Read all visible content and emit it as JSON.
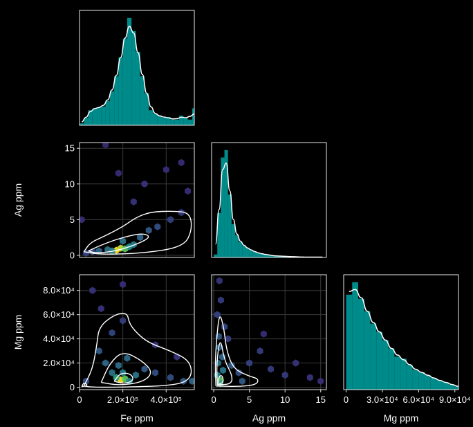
{
  "colors": {
    "background": "#000000",
    "axes": "#e8e8e8",
    "grid": "#3a3a3a",
    "hist_fill": "#008b8b",
    "kde_line": "#ffffff",
    "contour": "#ffffff",
    "density_low": "#3b0f70",
    "density_mid": "#21918c",
    "density_high": "#fde725"
  },
  "chart_data": {
    "type": "corner",
    "variables": [
      {
        "label": "Fe ppm",
        "range": [
          0,
          530000
        ],
        "ticks": [
          0,
          200000,
          400000
        ],
        "tick_labels": [
          "0",
          "2.0×10⁵",
          "4.0×10⁵"
        ]
      },
      {
        "label": "Ag ppm",
        "range": [
          -0.3,
          15.8
        ],
        "ticks": [
          0,
          5,
          10,
          15
        ],
        "tick_labels": [
          "0",
          "5",
          "10",
          "15"
        ]
      },
      {
        "label": "Mg ppm",
        "range": [
          -2000,
          93000
        ],
        "ticks": [
          0,
          20000,
          40000,
          60000,
          80000
        ],
        "tick_labels": [
          "0",
          "2.0×10⁴",
          "4.0×10⁴",
          "6.0×10⁴",
          "8.0×10⁴"
        ],
        "x_tick_labels": [
          "0",
          "3.0×10⁴",
          "6.0×10⁴",
          "9.0×10⁴"
        ],
        "x_ticks": [
          0,
          30000,
          60000,
          90000
        ]
      }
    ],
    "histograms": [
      {
        "variable": "Fe ppm",
        "bin_start": 0,
        "bin_width": 20000,
        "counts": [
          5,
          20,
          40,
          45,
          47,
          50,
          65,
          90,
          130,
          180,
          230,
          285,
          250,
          195,
          130,
          85,
          40,
          30,
          25,
          20,
          22,
          15,
          15,
          25,
          20,
          15,
          45,
          15
        ]
      },
      {
        "variable": "Ag ppm",
        "bin_start": 0,
        "bin_width": 0.5,
        "counts": [
          8,
          120,
          270,
          290,
          170,
          90,
          60,
          42,
          32,
          25,
          20,
          16,
          12,
          10,
          8,
          7,
          5,
          4,
          4,
          3,
          3,
          2,
          2,
          2,
          1,
          1,
          1,
          1,
          1,
          1,
          1
        ]
      },
      {
        "variable": "Mg ppm",
        "bin_start": 0,
        "bin_width": 5000,
        "counts": [
          230,
          260,
          220,
          190,
          160,
          140,
          120,
          100,
          80,
          75,
          60,
          48,
          42,
          35,
          28,
          22,
          18,
          12,
          8,
          5,
          3,
          2
        ]
      }
    ],
    "pairs": [
      {
        "x": "Fe ppm",
        "y": "Ag ppm",
        "density_cells": [
          {
            "x": 170000,
            "y": 0.7,
            "w": 1.0
          },
          {
            "x": 190000,
            "y": 1.0,
            "w": 0.95
          },
          {
            "x": 210000,
            "y": 0.9,
            "w": 0.85
          },
          {
            "x": 150000,
            "y": 0.6,
            "w": 0.6
          },
          {
            "x": 230000,
            "y": 1.2,
            "w": 0.65
          },
          {
            "x": 130000,
            "y": 0.8,
            "w": 0.45
          },
          {
            "x": 250000,
            "y": 1.5,
            "w": 0.5
          },
          {
            "x": 200000,
            "y": 2.0,
            "w": 0.45
          },
          {
            "x": 90000,
            "y": 0.6,
            "w": 0.35
          },
          {
            "x": 280000,
            "y": 2.5,
            "w": 0.35
          },
          {
            "x": 320000,
            "y": 3.5,
            "w": 0.3
          },
          {
            "x": 360000,
            "y": 4.0,
            "w": 0.25
          },
          {
            "x": 60000,
            "y": 0.5,
            "w": 0.25
          },
          {
            "x": 30000,
            "y": 0.3,
            "w": 0.2
          },
          {
            "x": 420000,
            "y": 5.0,
            "w": 0.2
          },
          {
            "x": 470000,
            "y": 6.0,
            "w": 0.18
          },
          {
            "x": 250000,
            "y": 7.5,
            "w": 0.15
          },
          {
            "x": 300000,
            "y": 10.0,
            "w": 0.15
          },
          {
            "x": 180000,
            "y": 11.5,
            "w": 0.12
          },
          {
            "x": 400000,
            "y": 12.0,
            "w": 0.12
          },
          {
            "x": 470000,
            "y": 13.0,
            "w": 0.12
          },
          {
            "x": 120000,
            "y": 15.5,
            "w": 0.12
          },
          {
            "x": 500000,
            "y": 9.0,
            "w": 0.12
          },
          {
            "x": 10000,
            "y": 5.0,
            "w": 0.12
          }
        ],
        "contours": [
          [
            [
              20000,
              0.5
            ],
            [
              50000,
              1.8
            ],
            [
              110000,
              2.6
            ],
            [
              200000,
              4.0
            ],
            [
              260000,
              5.3
            ],
            [
              330000,
              6.1
            ],
            [
              430000,
              6.2
            ],
            [
              510000,
              6.0
            ],
            [
              520000,
              3.5
            ],
            [
              480000,
              1.2
            ],
            [
              300000,
              0.3
            ],
            [
              100000,
              0.1
            ],
            [
              20000,
              0.5
            ]
          ],
          [
            [
              40000,
              0.6
            ],
            [
              120000,
              1.7
            ],
            [
              210000,
              2.6
            ],
            [
              290000,
              3.1
            ],
            [
              330000,
              2.6
            ],
            [
              270000,
              1.6
            ],
            [
              170000,
              0.6
            ],
            [
              80000,
              0.3
            ],
            [
              40000,
              0.6
            ]
          ]
        ]
      },
      {
        "x": "Fe ppm",
        "y": "Mg ppm",
        "density_cells": [
          {
            "x": 190000,
            "y": 6000,
            "w": 1.0
          },
          {
            "x": 210000,
            "y": 7000,
            "w": 0.85
          },
          {
            "x": 170000,
            "y": 8000,
            "w": 0.7
          },
          {
            "x": 230000,
            "y": 5000,
            "w": 0.6
          },
          {
            "x": 200000,
            "y": 12000,
            "w": 0.55
          },
          {
            "x": 150000,
            "y": 12000,
            "w": 0.45
          },
          {
            "x": 260000,
            "y": 10000,
            "w": 0.45
          },
          {
            "x": 180000,
            "y": 18000,
            "w": 0.4
          },
          {
            "x": 220000,
            "y": 24000,
            "w": 0.4
          },
          {
            "x": 120000,
            "y": 20000,
            "w": 0.35
          },
          {
            "x": 300000,
            "y": 15000,
            "w": 0.3
          },
          {
            "x": 90000,
            "y": 30000,
            "w": 0.3
          },
          {
            "x": 350000,
            "y": 12000,
            "w": 0.25
          },
          {
            "x": 420000,
            "y": 8000,
            "w": 0.25
          },
          {
            "x": 480000,
            "y": 5000,
            "w": 0.3
          },
          {
            "x": 30000,
            "y": 5000,
            "w": 0.25
          },
          {
            "x": 150000,
            "y": 45000,
            "w": 0.22
          },
          {
            "x": 200000,
            "y": 55000,
            "w": 0.18
          },
          {
            "x": 100000,
            "y": 65000,
            "w": 0.15
          },
          {
            "x": 60000,
            "y": 80000,
            "w": 0.15
          },
          {
            "x": 200000,
            "y": 85000,
            "w": 0.12
          },
          {
            "x": 350000,
            "y": 35000,
            "w": 0.15
          },
          {
            "x": 450000,
            "y": 25000,
            "w": 0.15
          },
          {
            "x": 520000,
            "y": 5000,
            "w": 0.35
          }
        ],
        "contours": [
          [
            [
              20000,
              1000
            ],
            [
              60000,
              15000
            ],
            [
              80000,
              35000
            ],
            [
              90000,
              50000
            ],
            [
              160000,
              60000
            ],
            [
              220000,
              62000
            ],
            [
              230000,
              52000
            ],
            [
              280000,
              42000
            ],
            [
              330000,
              36000
            ],
            [
              420000,
              30000
            ],
            [
              510000,
              22000
            ],
            [
              520000,
              8000
            ],
            [
              450000,
              1500
            ],
            [
              200000,
              0
            ],
            [
              60000,
              0
            ],
            [
              20000,
              1000
            ]
          ],
          [
            [
              100000,
              4000
            ],
            [
              140000,
              20000
            ],
            [
              200000,
              30000
            ],
            [
              290000,
              22000
            ],
            [
              340000,
              12000
            ],
            [
              290000,
              4000
            ],
            [
              180000,
              1500
            ],
            [
              100000,
              4000
            ]
          ],
          [
            [
              160000,
              5000
            ],
            [
              190000,
              12000
            ],
            [
              240000,
              11000
            ],
            [
              250000,
              5000
            ],
            [
              200000,
              3000
            ],
            [
              160000,
              5000
            ]
          ],
          [
            [
              10000,
              500
            ],
            [
              20000,
              4000
            ],
            [
              40000,
              1500
            ],
            [
              10000,
              500
            ]
          ]
        ]
      },
      {
        "x": "Ag ppm",
        "y": "Mg ppm",
        "density_cells": [
          {
            "x": 0.9,
            "y": 6000,
            "w": 0.85
          },
          {
            "x": 0.9,
            "y": 3000,
            "w": 0.7
          },
          {
            "x": 0.5,
            "y": 10000,
            "w": 0.55
          },
          {
            "x": 1.3,
            "y": 14000,
            "w": 0.45
          },
          {
            "x": 0.6,
            "y": 20000,
            "w": 0.45
          },
          {
            "x": 1.2,
            "y": 25000,
            "w": 0.35
          },
          {
            "x": 0.8,
            "y": 33000,
            "w": 0.35
          },
          {
            "x": 0.7,
            "y": 42000,
            "w": 0.3
          },
          {
            "x": 1.5,
            "y": 50000,
            "w": 0.22
          },
          {
            "x": 0.5,
            "y": 60000,
            "w": 0.2
          },
          {
            "x": 1.0,
            "y": 72000,
            "w": 0.18
          },
          {
            "x": 0.8,
            "y": 88000,
            "w": 0.15
          },
          {
            "x": 2.5,
            "y": 18000,
            "w": 0.3
          },
          {
            "x": 3.5,
            "y": 12000,
            "w": 0.25
          },
          {
            "x": 5.0,
            "y": 20000,
            "w": 0.2
          },
          {
            "x": 6.5,
            "y": 30000,
            "w": 0.18
          },
          {
            "x": 8.0,
            "y": 15000,
            "w": 0.18
          },
          {
            "x": 10.0,
            "y": 10000,
            "w": 0.18
          },
          {
            "x": 11.5,
            "y": 20000,
            "w": 0.15
          },
          {
            "x": 13.5,
            "y": 8000,
            "w": 0.15
          },
          {
            "x": 15.0,
            "y": 5000,
            "w": 0.12
          },
          {
            "x": 7.0,
            "y": 44000,
            "w": 0.12
          },
          {
            "x": 4.0,
            "y": 5000,
            "w": 0.3
          },
          {
            "x": 2.0,
            "y": 40000,
            "w": 0.18
          }
        ],
        "contours": [
          [
            [
              0.3,
              1000
            ],
            [
              0.2,
              20000
            ],
            [
              0.4,
              40000
            ],
            [
              0.8,
              62000
            ],
            [
              1.4,
              50000
            ],
            [
              1.8,
              30000
            ],
            [
              2.8,
              15000
            ],
            [
              5.0,
              9000
            ],
            [
              6.3,
              7000
            ],
            [
              6.0,
              2000
            ],
            [
              3.5,
              500
            ],
            [
              0.3,
              1000
            ]
          ],
          [
            [
              0.5,
              2000
            ],
            [
              0.4,
              20000
            ],
            [
              0.9,
              42000
            ],
            [
              1.5,
              22000
            ],
            [
              2.6,
              10000
            ],
            [
              2.5,
              2500
            ],
            [
              0.5,
              2000
            ]
          ],
          [
            [
              0.7,
              2500
            ],
            [
              0.7,
              9000
            ],
            [
              1.2,
              10000
            ],
            [
              1.4,
              4000
            ],
            [
              0.7,
              2500
            ]
          ]
        ]
      }
    ]
  }
}
